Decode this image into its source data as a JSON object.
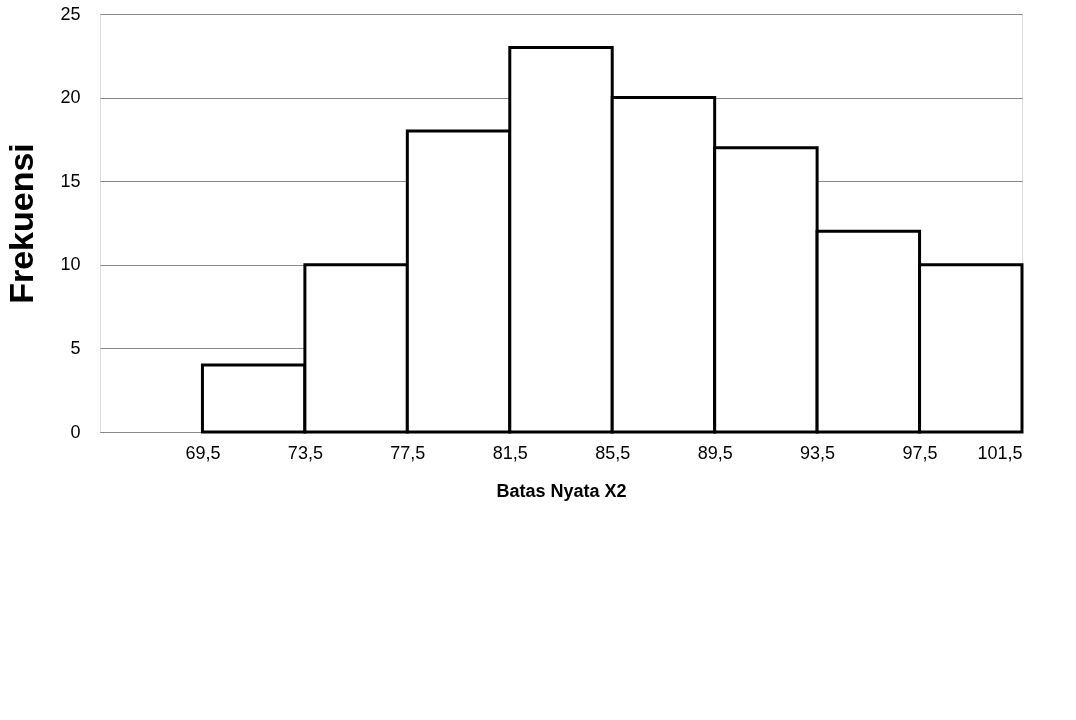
{
  "chart_data": {
    "type": "histogram",
    "xlabel": "Batas Nyata X2",
    "ylabel": "Frekuensi",
    "bins": [
      69.5,
      73.5,
      77.5,
      81.5,
      85.5,
      89.5,
      93.5,
      97.5,
      101.5
    ],
    "values": [
      4,
      10,
      18,
      23,
      20,
      17,
      12,
      10
    ],
    "color": "#ffffff",
    "xlim": [
      65.5,
      101.5
    ],
    "xticks": [
      {
        "value": 69.5,
        "label": "69,5"
      },
      {
        "value": 73.5,
        "label": "73,5"
      },
      {
        "value": 77.5,
        "label": "77,5"
      },
      {
        "value": 81.5,
        "label": "81,5"
      },
      {
        "value": 85.5,
        "label": "85,5"
      },
      {
        "value": 89.5,
        "label": "89,5"
      },
      {
        "value": 93.5,
        "label": "93,5"
      },
      {
        "value": 97.5,
        "label": "97,5"
      },
      {
        "value": 101.5,
        "label": "101,5"
      }
    ],
    "ylim": [
      0,
      25
    ],
    "yticks": [
      0,
      5,
      10,
      15,
      20,
      25
    ],
    "grid": "y"
  }
}
